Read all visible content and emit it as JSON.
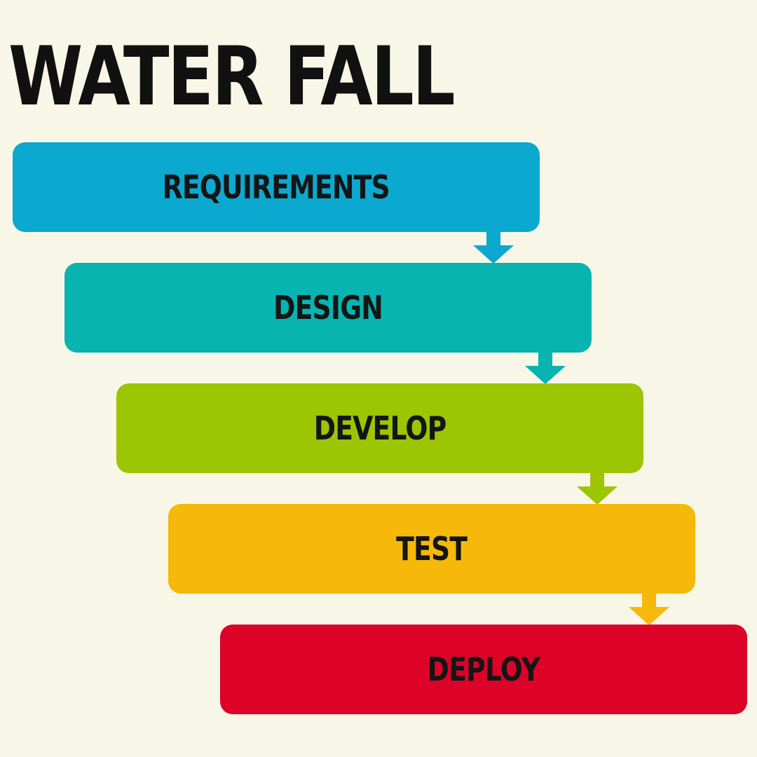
{
  "title": "WATER FALL",
  "steps": [
    {
      "label": "REQUIREMENTS",
      "color": "#0ba8cf"
    },
    {
      "label": "DESIGN",
      "color": "#07b4b0"
    },
    {
      "label": "DEVELOP",
      "color": "#9cc504"
    },
    {
      "label": "TEST",
      "color": "#f6b90a"
    },
    {
      "label": "DEPLOY",
      "color": "#dc0228"
    }
  ],
  "arrow_icon": "down-arrow-icon"
}
